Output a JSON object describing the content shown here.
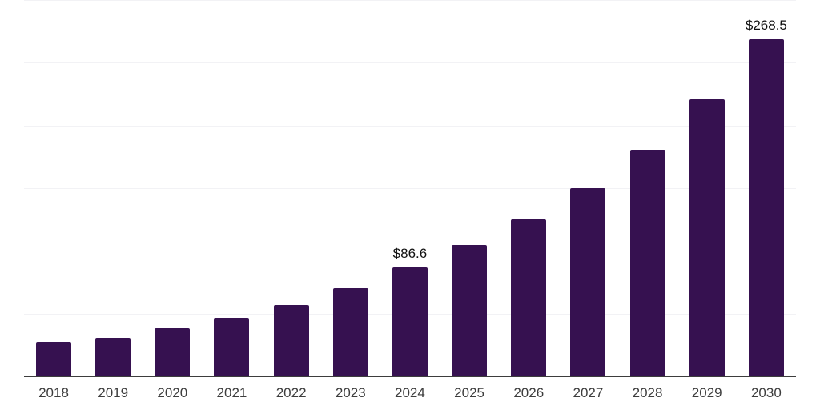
{
  "chart": {
    "bar_color": "#361150",
    "axis_line_color": "#3d3d3d",
    "gridline_color": "#f2f2f5",
    "value_label_color": "#111111",
    "tick_label_color": "#3d3d3d",
    "background_color": "#ffffff"
  },
  "chart_data": {
    "type": "bar",
    "categories": [
      "2018",
      "2019",
      "2020",
      "2021",
      "2022",
      "2023",
      "2024",
      "2025",
      "2026",
      "2027",
      "2028",
      "2029",
      "2030"
    ],
    "values": [
      27.5,
      30.7,
      38.3,
      46.7,
      57.1,
      70.0,
      86.6,
      104.6,
      125.2,
      150.3,
      180.9,
      220.8,
      268.5
    ],
    "value_labels": [
      "",
      "",
      "",
      "",
      "",
      "",
      "$86.6",
      "",
      "",
      "",
      "",
      "",
      "$268.5"
    ],
    "title": "",
    "xlabel": "",
    "ylabel": "",
    "ylim": [
      0,
      300
    ],
    "gridline_interval": 50,
    "grid": "horizontal-only",
    "legend": "none",
    "y_axis_tick_labels_visible": false,
    "series_color": "#361150"
  }
}
